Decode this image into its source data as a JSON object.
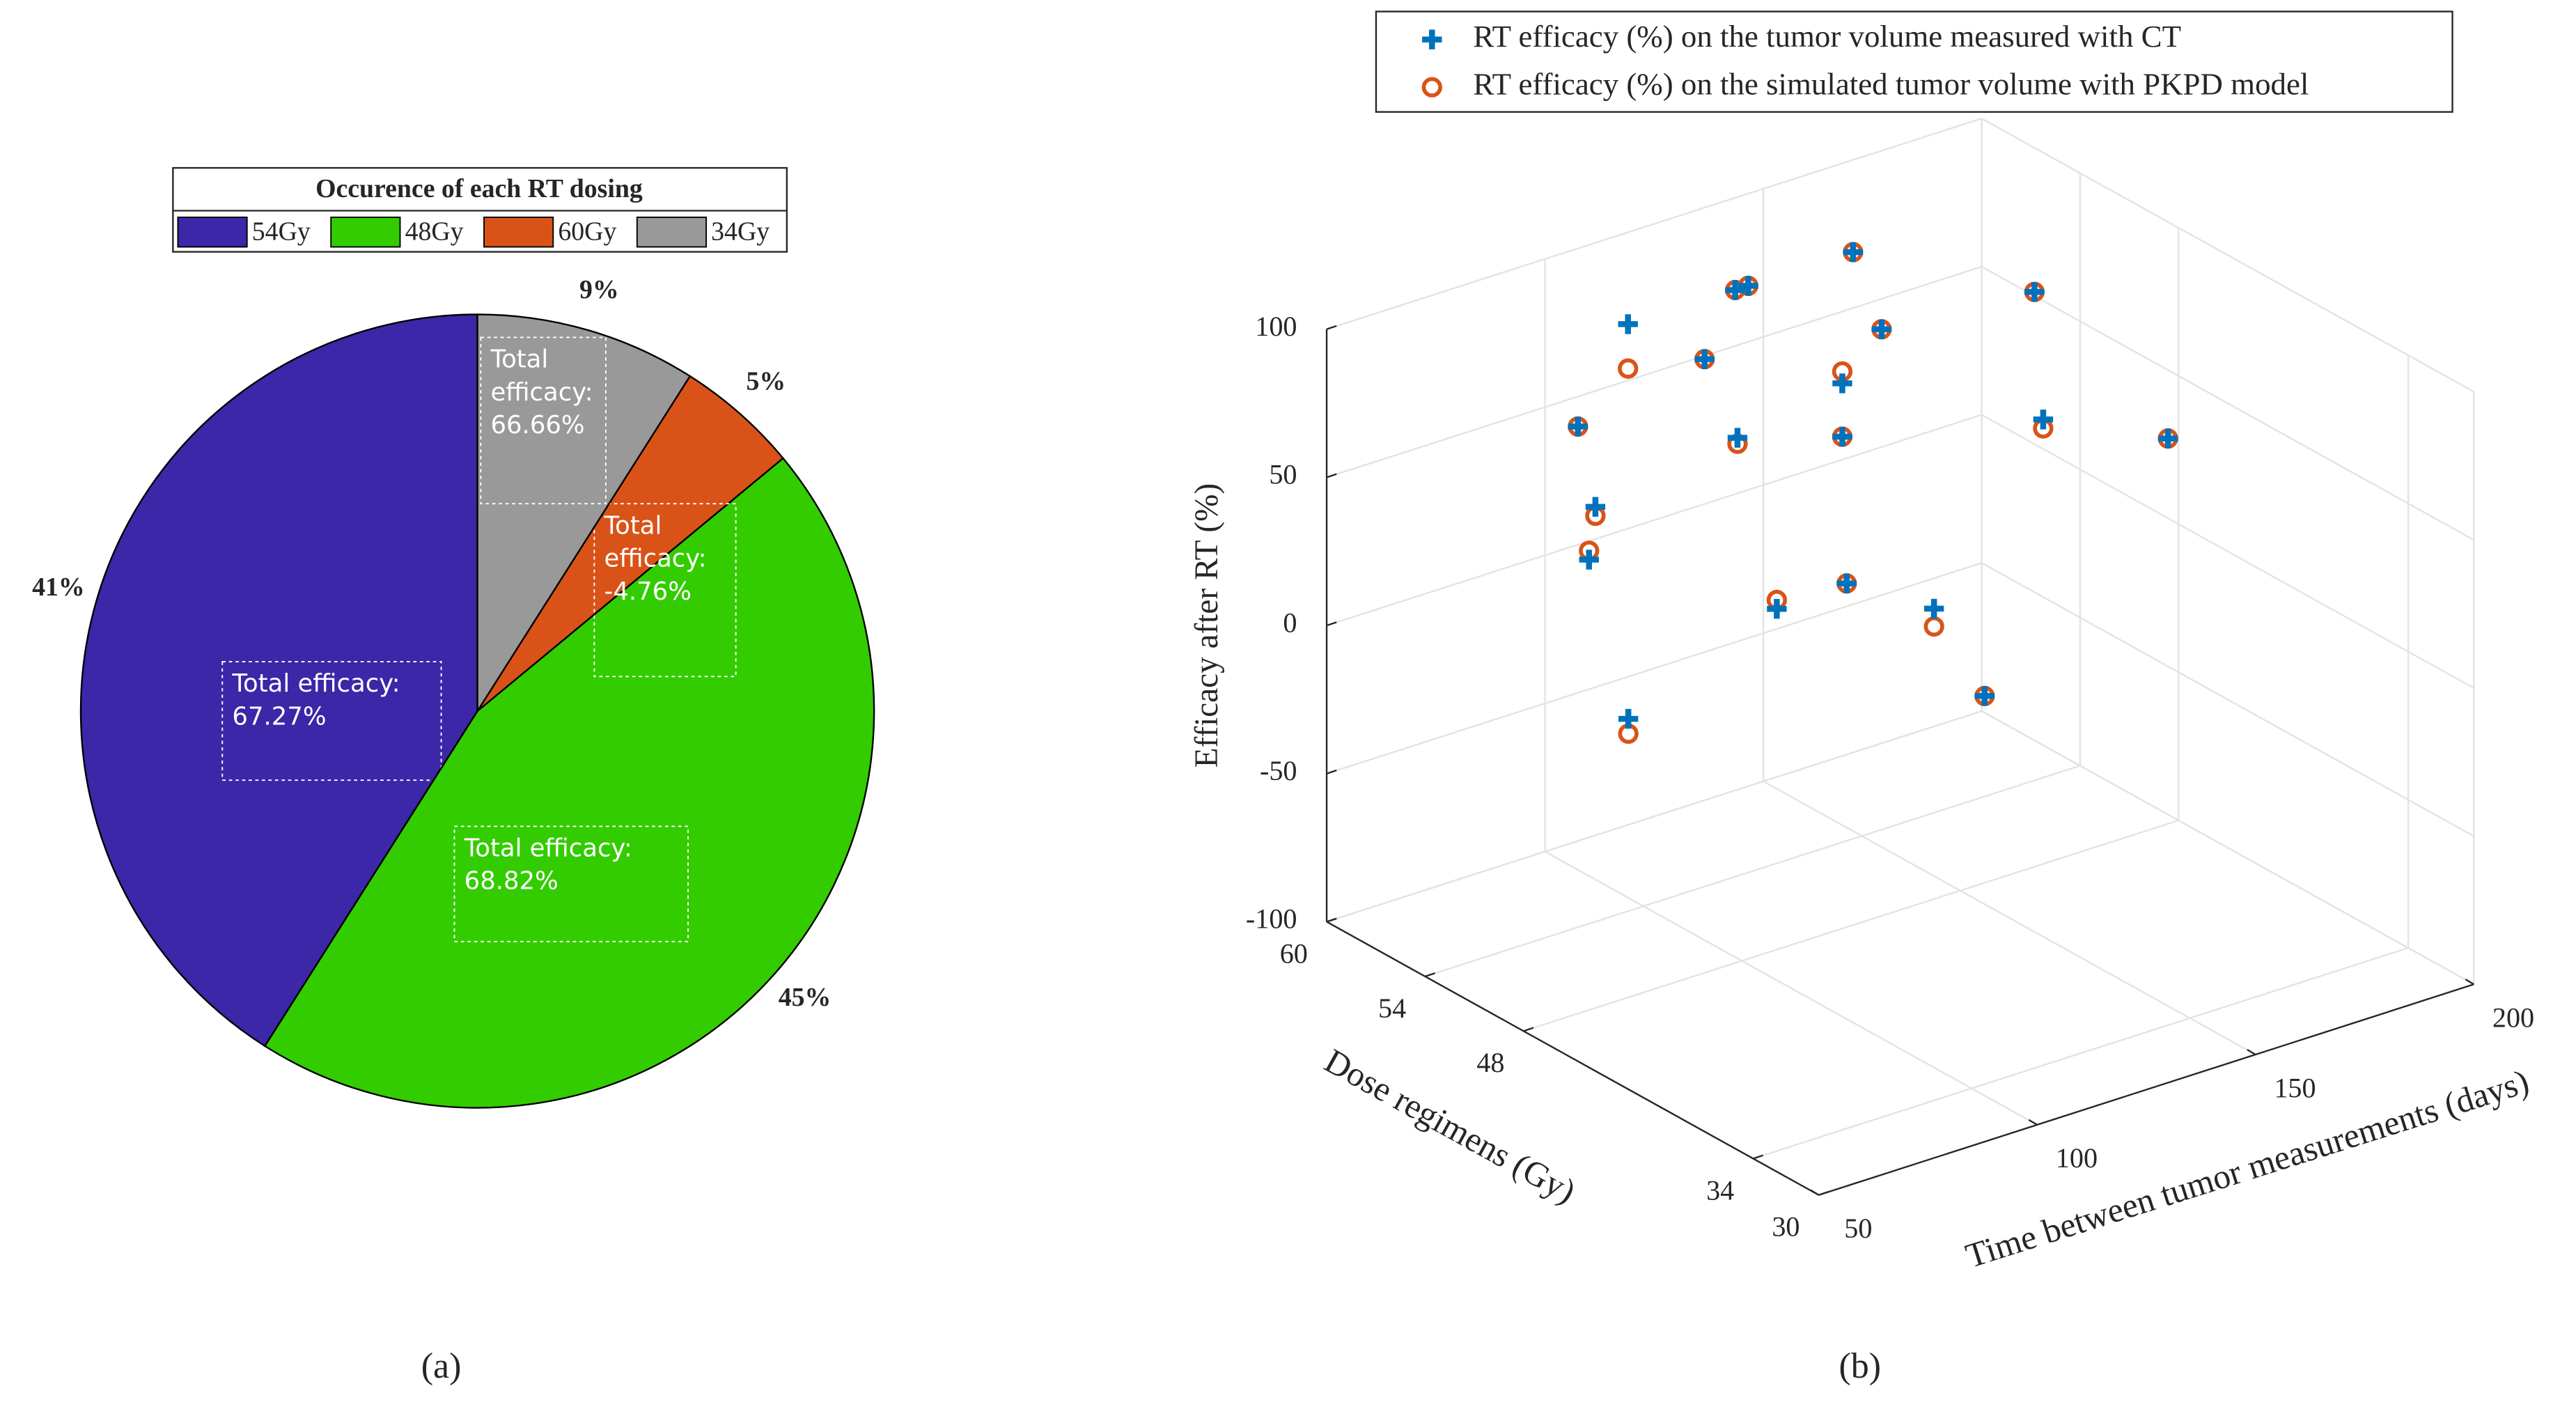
{
  "chart_data": [
    {
      "type": "pie",
      "legend_title": "Occurence of each RT dosing",
      "categories": [
        "54Gy",
        "48Gy",
        "60Gy",
        "34Gy"
      ],
      "values": [
        41,
        45,
        5,
        9
      ],
      "value_labels": [
        "41%",
        "45%",
        "5%",
        "9%"
      ],
      "colors": [
        "#3b27a8",
        "#33cc00",
        "#d95319",
        "#999999"
      ],
      "annotations": [
        [
          "Total efficacy:",
          "67.27%"
        ],
        [
          "Total efficacy:",
          "68.82%"
        ],
        [
          "Total",
          "efficacy:",
          "-4.76%"
        ],
        [
          "Total",
          "efficacy:",
          "66.66%"
        ]
      ],
      "caption": "(a)"
    },
    {
      "type": "scatter3d",
      "xlabel": "Dose regimens (Gy)",
      "ylabel": "Time between tumor measurements (days)",
      "zlabel": "Efficacy after RT (%)",
      "x": [
        60,
        54,
        54,
        48,
        48,
        54,
        54,
        54,
        48,
        48,
        48,
        48,
        48,
        54,
        48,
        48,
        34,
        48,
        48,
        34
      ],
      "y": [
        119,
        85,
        89,
        65,
        74,
        114,
        121,
        124,
        99,
        108,
        123,
        123,
        124,
        148,
        132,
        144,
        103,
        167,
        169,
        145
      ],
      "series": [
        {
          "name": "RT efficacy (%) on the tumor volume measured with CT",
          "color": "#0072bd",
          "marker": "plus",
          "values": [
            69,
            69,
            40,
            52,
            -6,
            78,
            98,
            98,
            77,
            15,
            84,
            66,
            16,
            98,
            98,
            -2,
            31,
            94,
            50,
            98
          ]
        },
        {
          "name": "RT efficacy (%) on the simulated tumor volume with PKPD model",
          "color": "#d95319",
          "marker": "circle",
          "values": [
            54,
            69,
            37,
            55,
            -11,
            78,
            98,
            98,
            75,
            18,
            88,
            66,
            16,
            98,
            98,
            -8,
            31,
            94,
            47,
            98
          ]
        }
      ],
      "xlim": [
        60,
        30
      ],
      "xticks": [
        30,
        34,
        48,
        54,
        60
      ],
      "ylim": [
        50,
        200
      ],
      "yticks": [
        50,
        100,
        150,
        200
      ],
      "zlim": [
        -100,
        100
      ],
      "zticks": [
        -100,
        -50,
        0,
        50,
        100
      ],
      "grid": true,
      "caption": "(b)"
    }
  ]
}
